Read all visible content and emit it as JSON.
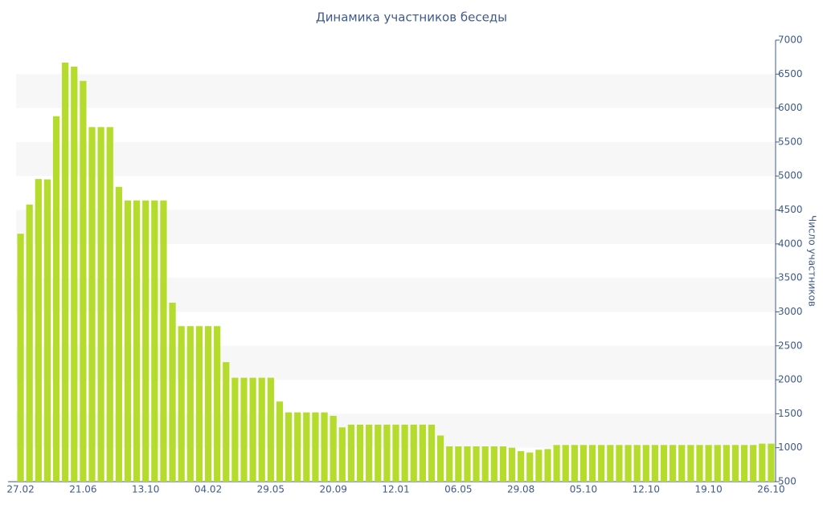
{
  "chart_data": {
    "type": "bar",
    "title": "Динамика участников беседы",
    "y_label": "Число участников",
    "categories": [
      "27.02",
      null,
      null,
      null,
      null,
      null,
      null,
      "21.06",
      null,
      null,
      null,
      null,
      null,
      null,
      "13.10",
      null,
      null,
      null,
      null,
      null,
      null,
      "04.02",
      null,
      null,
      null,
      null,
      null,
      null,
      "29.05",
      null,
      null,
      null,
      null,
      null,
      null,
      "20.09",
      null,
      null,
      null,
      null,
      null,
      null,
      "12.01",
      null,
      null,
      null,
      null,
      null,
      null,
      "06.05",
      null,
      null,
      null,
      null,
      null,
      null,
      "29.08",
      null,
      null,
      null,
      null,
      null,
      null,
      "05.10",
      null,
      null,
      null,
      null,
      null,
      null,
      "12.10",
      null,
      null,
      null,
      null,
      null,
      null,
      "19.10",
      null,
      null,
      null,
      null,
      null,
      null,
      "26.10"
    ],
    "values": [
      4150,
      4580,
      4955,
      4950,
      5880,
      6670,
      6610,
      6400,
      5720,
      5720,
      5720,
      4840,
      4640,
      4640,
      4640,
      4640,
      4640,
      3135,
      2790,
      2790,
      2790,
      2790,
      2790,
      2260,
      2030,
      2030,
      2030,
      2030,
      2030,
      1680,
      1520,
      1520,
      1520,
      1520,
      1520,
      1470,
      1300,
      1340,
      1340,
      1340,
      1340,
      1340,
      1340,
      1340,
      1340,
      1340,
      1340,
      1180,
      1020,
      1020,
      1020,
      1020,
      1020,
      1020,
      1020,
      1000,
      950,
      930,
      970,
      980,
      1040,
      1040,
      1040,
      1040,
      1040,
      1040,
      1040,
      1040,
      1040,
      1040,
      1040,
      1040,
      1040,
      1040,
      1040,
      1040,
      1040,
      1040,
      1040,
      1040,
      1040,
      1040,
      1040,
      1060,
      1060
    ],
    "color": "#b5dc2c",
    "ylim": [
      500,
      7000
    ],
    "yticks": [
      500,
      1000,
      1500,
      2000,
      2500,
      3000,
      3500,
      4000,
      4500,
      5000,
      5500,
      6000,
      6500,
      7000
    ],
    "stripes": true
  }
}
